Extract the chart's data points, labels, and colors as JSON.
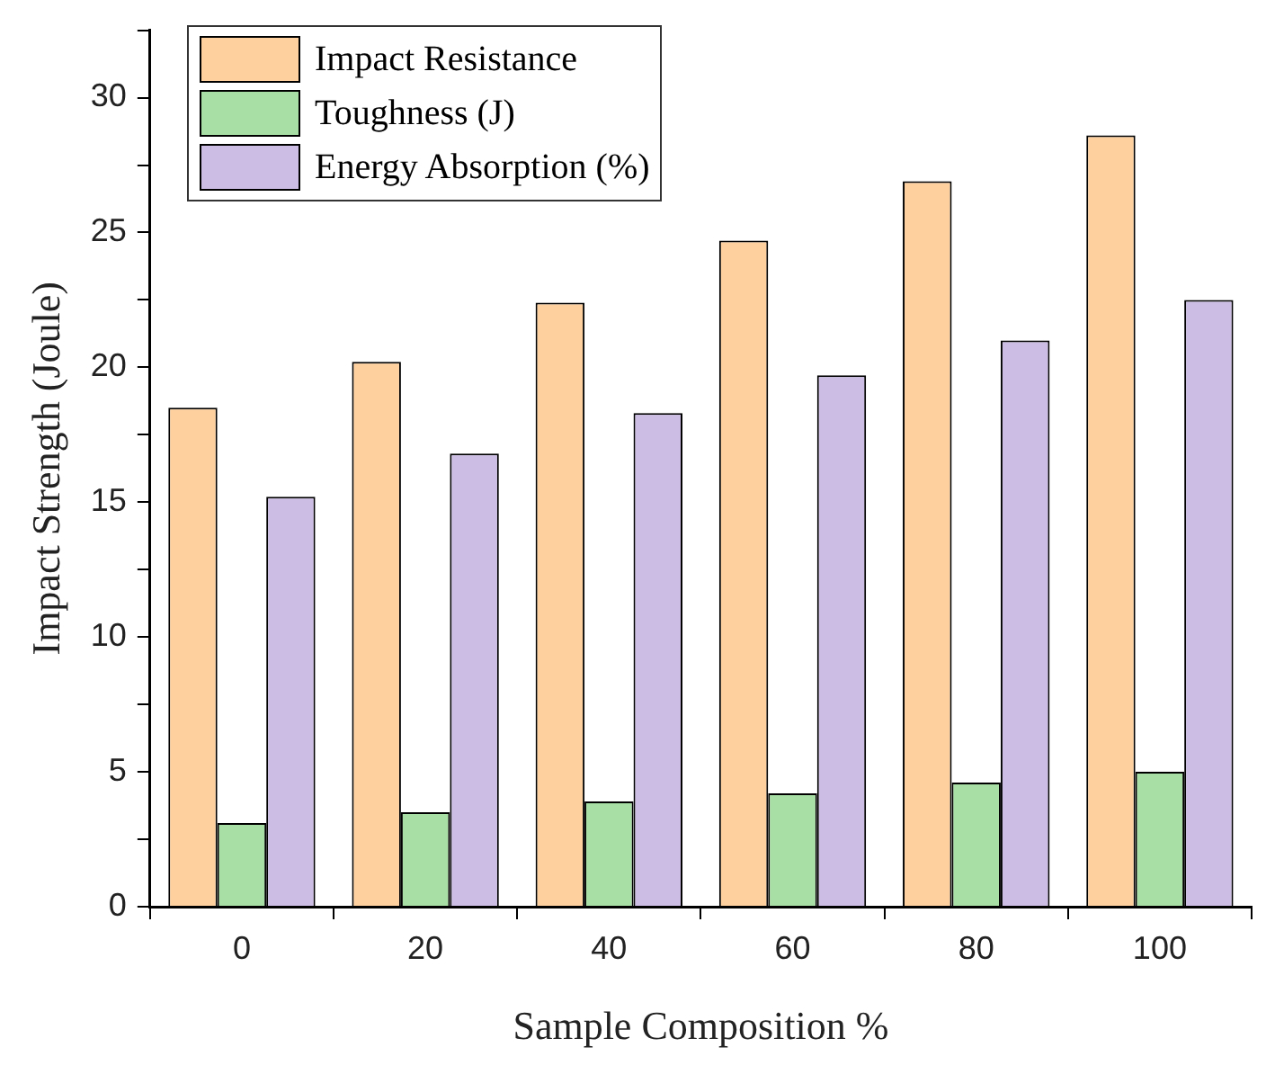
{
  "chart_data": {
    "type": "bar",
    "xlabel": "Sample Composition %",
    "ylabel": "Impact Strength (Joule)",
    "categories": [
      "0",
      "20",
      "40",
      "60",
      "80",
      "100"
    ],
    "series": [
      {
        "name": "Impact Resistance",
        "color": "#fdd09e",
        "values": [
          18.5,
          20.2,
          22.4,
          24.7,
          26.9,
          28.6
        ]
      },
      {
        "name": "Toughness (J)",
        "color": "#a8dfa4",
        "values": [
          3.1,
          3.5,
          3.9,
          4.2,
          4.6,
          5.0
        ]
      },
      {
        "name": "Energy Absorption (%)",
        "color": "#cbbde3",
        "values": [
          15.2,
          16.8,
          18.3,
          19.7,
          21.0,
          22.5
        ]
      }
    ],
    "ylim": [
      0,
      32.5
    ],
    "yticks": [
      0,
      {
        "value": 2.5,
        "label": null
      },
      5,
      {
        "value": 7.5,
        "label": null
      },
      10,
      {
        "value": 12.5,
        "label": null
      },
      15,
      {
        "value": 17.5,
        "label": null
      },
      20,
      {
        "value": 22.5,
        "label": null
      },
      25,
      {
        "value": 27.5,
        "label": null
      },
      30,
      {
        "value": 32.5,
        "label": null
      }
    ],
    "grid": false,
    "legend": "top left"
  }
}
